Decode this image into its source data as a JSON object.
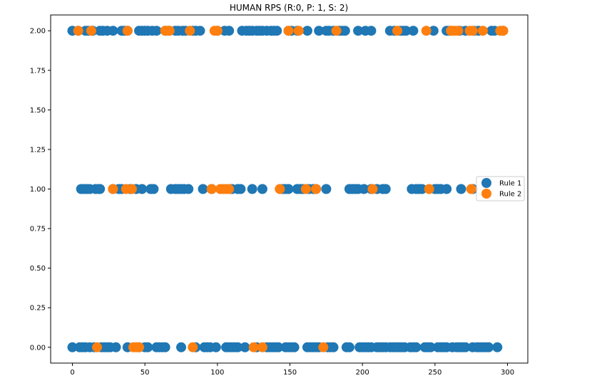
{
  "chart_data": {
    "type": "scatter",
    "title": "HUMAN RPS (R:0, P: 1, S: 2)",
    "xlabel": "",
    "ylabel": "",
    "xlim": [
      -15,
      314
    ],
    "ylim": [
      -0.1,
      2.1
    ],
    "xticks": [
      0,
      50,
      100,
      150,
      200,
      250,
      300
    ],
    "xtick_labels": [
      "0",
      "50",
      "100",
      "150",
      "200",
      "250",
      "300"
    ],
    "yticks": [
      0.0,
      0.25,
      0.5,
      0.75,
      1.0,
      1.25,
      1.5,
      1.75,
      2.0
    ],
    "ytick_labels": [
      "0.00",
      "0.25",
      "0.50",
      "0.75",
      "1.00",
      "1.25",
      "1.50",
      "1.75",
      "2.00"
    ],
    "grid": false,
    "legend_position": "right",
    "series": [
      {
        "name": "Rule 1",
        "color": "#1f77b4",
        "points": [
          [
            0,
            0
          ],
          [
            5,
            0
          ],
          [
            7,
            0
          ],
          [
            9,
            0
          ],
          [
            12,
            0
          ],
          [
            15,
            0
          ],
          [
            20,
            0
          ],
          [
            22,
            0
          ],
          [
            24,
            0
          ],
          [
            26,
            0
          ],
          [
            30,
            0
          ],
          [
            38,
            0
          ],
          [
            46,
            0
          ],
          [
            50,
            0
          ],
          [
            52,
            0
          ],
          [
            58,
            0
          ],
          [
            60,
            0
          ],
          [
            62,
            0
          ],
          [
            64,
            0
          ],
          [
            75,
            0
          ],
          [
            85,
            0
          ],
          [
            91,
            0
          ],
          [
            93,
            0
          ],
          [
            95,
            0
          ],
          [
            99,
            0
          ],
          [
            106,
            0
          ],
          [
            108,
            0
          ],
          [
            110,
            0
          ],
          [
            112,
            0
          ],
          [
            114,
            0
          ],
          [
            119,
            0
          ],
          [
            127,
            0
          ],
          [
            134,
            0
          ],
          [
            136,
            0
          ],
          [
            138,
            0
          ],
          [
            140,
            0
          ],
          [
            142,
            0
          ],
          [
            147,
            0
          ],
          [
            149,
            0
          ],
          [
            151,
            0
          ],
          [
            153,
            0
          ],
          [
            162,
            0
          ],
          [
            164,
            0
          ],
          [
            166,
            0
          ],
          [
            168,
            0
          ],
          [
            170,
            0
          ],
          [
            176,
            0
          ],
          [
            178,
            0
          ],
          [
            180,
            0
          ],
          [
            189,
            0
          ],
          [
            191,
            0
          ],
          [
            198,
            0
          ],
          [
            200,
            0
          ],
          [
            202,
            0
          ],
          [
            204,
            0
          ],
          [
            206,
            0
          ],
          [
            210,
            0
          ],
          [
            212,
            0
          ],
          [
            214,
            0
          ],
          [
            216,
            0
          ],
          [
            219,
            0
          ],
          [
            221,
            0
          ],
          [
            223,
            0
          ],
          [
            225,
            0
          ],
          [
            227,
            0
          ],
          [
            229,
            0
          ],
          [
            233,
            0
          ],
          [
            235,
            0
          ],
          [
            237,
            0
          ],
          [
            243,
            0
          ],
          [
            245,
            0
          ],
          [
            247,
            0
          ],
          [
            252,
            0
          ],
          [
            254,
            0
          ],
          [
            256,
            0
          ],
          [
            258,
            0
          ],
          [
            262,
            0
          ],
          [
            265,
            0
          ],
          [
            267,
            0
          ],
          [
            269,
            0
          ],
          [
            271,
            0
          ],
          [
            276,
            0
          ],
          [
            279,
            0
          ],
          [
            281,
            0
          ],
          [
            283,
            0
          ],
          [
            285,
            0
          ],
          [
            287,
            0
          ],
          [
            293,
            0
          ],
          [
            6,
            1
          ],
          [
            8,
            1
          ],
          [
            10,
            1
          ],
          [
            12,
            1
          ],
          [
            16,
            1
          ],
          [
            18,
            1
          ],
          [
            19,
            1
          ],
          [
            28,
            1
          ],
          [
            32,
            1
          ],
          [
            34,
            1
          ],
          [
            40,
            1
          ],
          [
            44,
            1
          ],
          [
            48,
            1
          ],
          [
            54,
            1
          ],
          [
            56,
            1
          ],
          [
            68,
            1
          ],
          [
            71,
            1
          ],
          [
            73,
            1
          ],
          [
            75,
            1
          ],
          [
            77,
            1
          ],
          [
            80,
            1
          ],
          [
            90,
            1
          ],
          [
            96,
            1
          ],
          [
            110,
            1
          ],
          [
            114,
            1
          ],
          [
            116,
            1
          ],
          [
            124,
            1
          ],
          [
            131,
            1
          ],
          [
            145,
            1
          ],
          [
            147,
            1
          ],
          [
            149,
            1
          ],
          [
            155,
            1
          ],
          [
            157,
            1
          ],
          [
            159,
            1
          ],
          [
            163,
            1
          ],
          [
            166,
            1
          ],
          [
            168,
            1
          ],
          [
            175,
            1
          ],
          [
            191,
            1
          ],
          [
            193,
            1
          ],
          [
            195,
            1
          ],
          [
            197,
            1
          ],
          [
            201,
            1
          ],
          [
            206,
            1
          ],
          [
            210,
            1
          ],
          [
            214,
            1
          ],
          [
            216,
            1
          ],
          [
            234,
            1
          ],
          [
            237,
            1
          ],
          [
            239,
            1
          ],
          [
            241,
            1
          ],
          [
            250,
            1
          ],
          [
            252,
            1
          ],
          [
            254,
            1
          ],
          [
            258,
            1
          ],
          [
            268,
            1
          ],
          [
            276,
            1
          ],
          [
            0,
            2
          ],
          [
            4,
            2
          ],
          [
            9,
            2
          ],
          [
            11,
            2
          ],
          [
            14,
            2
          ],
          [
            19,
            2
          ],
          [
            21,
            2
          ],
          [
            24,
            2
          ],
          [
            28,
            2
          ],
          [
            34,
            2
          ],
          [
            36,
            2
          ],
          [
            38,
            2
          ],
          [
            46,
            2
          ],
          [
            48,
            2
          ],
          [
            50,
            2
          ],
          [
            52,
            2
          ],
          [
            55,
            2
          ],
          [
            58,
            2
          ],
          [
            64,
            2
          ],
          [
            66,
            2
          ],
          [
            71,
            2
          ],
          [
            73,
            2
          ],
          [
            76,
            2
          ],
          [
            78,
            2
          ],
          [
            83,
            2
          ],
          [
            85,
            2
          ],
          [
            88,
            2
          ],
          [
            100,
            2
          ],
          [
            105,
            2
          ],
          [
            108,
            2
          ],
          [
            117,
            2
          ],
          [
            120,
            2
          ],
          [
            122,
            2
          ],
          [
            124,
            2
          ],
          [
            127,
            2
          ],
          [
            129,
            2
          ],
          [
            131,
            2
          ],
          [
            134,
            2
          ],
          [
            137,
            2
          ],
          [
            139,
            2
          ],
          [
            141,
            2
          ],
          [
            149,
            2
          ],
          [
            151,
            2
          ],
          [
            155,
            2
          ],
          [
            162,
            2
          ],
          [
            170,
            2
          ],
          [
            175,
            2
          ],
          [
            177,
            2
          ],
          [
            180,
            2
          ],
          [
            184,
            2
          ],
          [
            186,
            2
          ],
          [
            188,
            2
          ],
          [
            197,
            2
          ],
          [
            202,
            2
          ],
          [
            206,
            2
          ],
          [
            219,
            2
          ],
          [
            222,
            2
          ],
          [
            226,
            2
          ],
          [
            228,
            2
          ],
          [
            230,
            2
          ],
          [
            235,
            2
          ],
          [
            249,
            2
          ],
          [
            258,
            2
          ],
          [
            260,
            2
          ],
          [
            267,
            2
          ],
          [
            271,
            2
          ],
          [
            277,
            2
          ],
          [
            280,
            2
          ],
          [
            289,
            2
          ],
          [
            291,
            2
          ],
          [
            297,
            2
          ]
        ]
      },
      {
        "name": "Rule 2",
        "color": "#ff7f0e",
        "points": [
          [
            17,
            0
          ],
          [
            42,
            0
          ],
          [
            44,
            0
          ],
          [
            46,
            0
          ],
          [
            83,
            0
          ],
          [
            125,
            0
          ],
          [
            131,
            0
          ],
          [
            173,
            0
          ],
          [
            28,
            1
          ],
          [
            37,
            1
          ],
          [
            41,
            1
          ],
          [
            96,
            1
          ],
          [
            102,
            1
          ],
          [
            104,
            1
          ],
          [
            106,
            1
          ],
          [
            108,
            1
          ],
          [
            143,
            1
          ],
          [
            161,
            1
          ],
          [
            168,
            1
          ],
          [
            207,
            1
          ],
          [
            246,
            1
          ],
          [
            275,
            1
          ],
          [
            4,
            2
          ],
          [
            13,
            2
          ],
          [
            38,
            2
          ],
          [
            64,
            2
          ],
          [
            66,
            2
          ],
          [
            67,
            2
          ],
          [
            81,
            2
          ],
          [
            98,
            2
          ],
          [
            100,
            2
          ],
          [
            149,
            2
          ],
          [
            156,
            2
          ],
          [
            182,
            2
          ],
          [
            224,
            2
          ],
          [
            244,
            2
          ],
          [
            261,
            2
          ],
          [
            262,
            2
          ],
          [
            264,
            2
          ],
          [
            266,
            2
          ],
          [
            274,
            2
          ],
          [
            276,
            2
          ],
          [
            283,
            2
          ],
          [
            295,
            2
          ],
          [
            297,
            2
          ]
        ]
      }
    ]
  }
}
